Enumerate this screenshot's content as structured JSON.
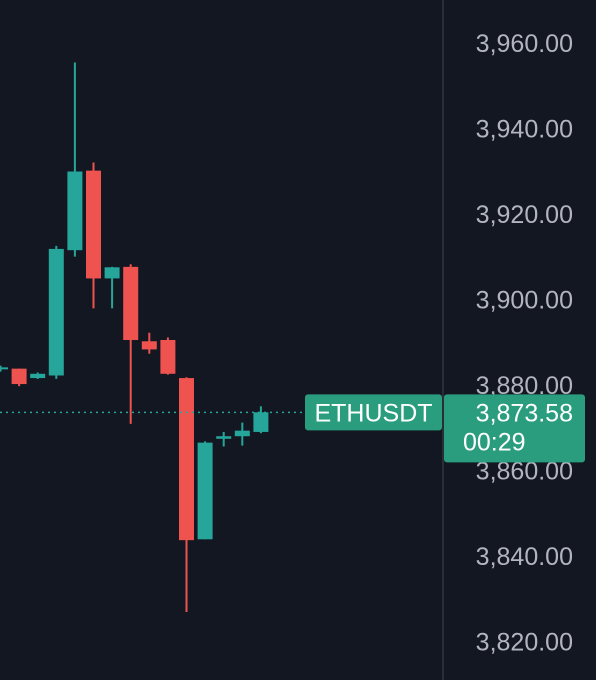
{
  "chart_data": {
    "type": "candlestick",
    "symbol": "ETHUSDT",
    "last_price": 3873.58,
    "last_price_label": "3,873.58",
    "countdown": "00:29",
    "ylim": [
      3811,
      3970
    ],
    "y_ticks": [
      3960,
      3940,
      3920,
      3900,
      3880,
      3860,
      3840,
      3820
    ],
    "y_tick_labels": [
      "3,960.00",
      "3,940.00",
      "3,920.00",
      "3,900.00",
      "3,880.00",
      "3,860.00",
      "3,840.00",
      "3,820.00"
    ],
    "grid": false,
    "candles": [
      {
        "open": 3883.8,
        "high": 3884.5,
        "low": 3883.1,
        "close": 3884.1
      },
      {
        "open": 3883.8,
        "high": 3883.8,
        "low": 3879.7,
        "close": 3880.2
      },
      {
        "open": 3881.6,
        "high": 3882.9,
        "low": 3881.4,
        "close": 3882.6
      },
      {
        "open": 3882.2,
        "high": 3912.5,
        "low": 3881.4,
        "close": 3911.8
      },
      {
        "open": 3911.5,
        "high": 3955.4,
        "low": 3910.0,
        "close": 3929.9
      },
      {
        "open": 3930.1,
        "high": 3932.0,
        "low": 3897.9,
        "close": 3904.9
      },
      {
        "open": 3904.9,
        "high": 3907.6,
        "low": 3897.9,
        "close": 3907.5
      },
      {
        "open": 3907.6,
        "high": 3908.2,
        "low": 3870.9,
        "close": 3890.5
      },
      {
        "open": 3890.2,
        "high": 3892.2,
        "low": 3887.3,
        "close": 3888.3
      },
      {
        "open": 3890.5,
        "high": 3891.1,
        "low": 3882.4,
        "close": 3882.6
      },
      {
        "open": 3881.6,
        "high": 3881.8,
        "low": 3826.9,
        "close": 3843.7
      },
      {
        "open": 3843.9,
        "high": 3866.8,
        "low": 3843.9,
        "close": 3866.5
      },
      {
        "open": 3867.4,
        "high": 3869.0,
        "low": 3865.6,
        "close": 3868.0
      },
      {
        "open": 3868.0,
        "high": 3871.2,
        "low": 3865.8,
        "close": 3869.3
      },
      {
        "open": 3869.0,
        "high": 3875.0,
        "low": 3868.7,
        "close": 3873.6
      }
    ],
    "colors": {
      "up": "#26a69a",
      "down": "#ef5350",
      "label_bg": "#2a9d7e",
      "background": "#131722",
      "axis_text": "#b2b5be",
      "divider": "#2a2e39",
      "price_line": "#26a69a"
    }
  }
}
